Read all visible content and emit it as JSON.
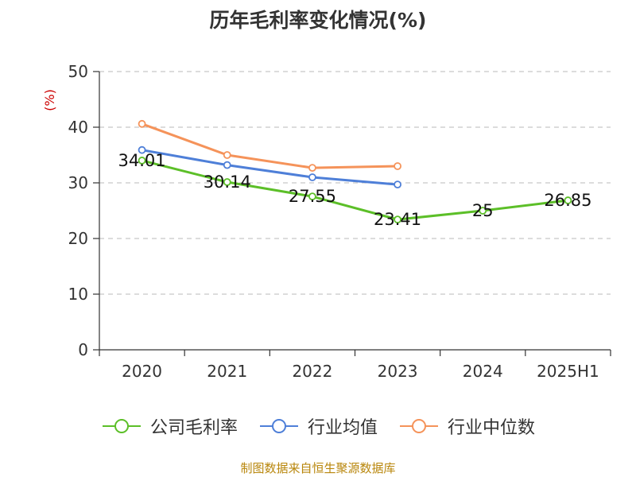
{
  "chart_data": {
    "type": "line",
    "title": "历年毛利率变化情况(%)",
    "ylabel": "(%)",
    "categories": [
      "2020",
      "2021",
      "2022",
      "2023",
      "2024",
      "2025H1"
    ],
    "ylim": [
      0,
      50
    ],
    "yticks": [
      0,
      10,
      20,
      30,
      40,
      50
    ],
    "grid": true,
    "legend_position": "bottom",
    "series": [
      {
        "name": "公司毛利率",
        "color": "#5cbf28",
        "values": [
          34.01,
          30.14,
          27.55,
          23.41,
          25,
          26.85
        ],
        "labels": [
          "34.01",
          "30.14",
          "27.55",
          "23.41",
          "25",
          "26.85"
        ]
      },
      {
        "name": "行业均值",
        "color": "#4e7fd8",
        "values": [
          35.9,
          33.2,
          31.0,
          29.7,
          null,
          null
        ]
      },
      {
        "name": "行业中位数",
        "color": "#f5935a",
        "values": [
          40.6,
          35.0,
          32.7,
          33.0,
          null,
          null
        ]
      }
    ]
  },
  "source": "制图数据来自恒生聚源数据库"
}
